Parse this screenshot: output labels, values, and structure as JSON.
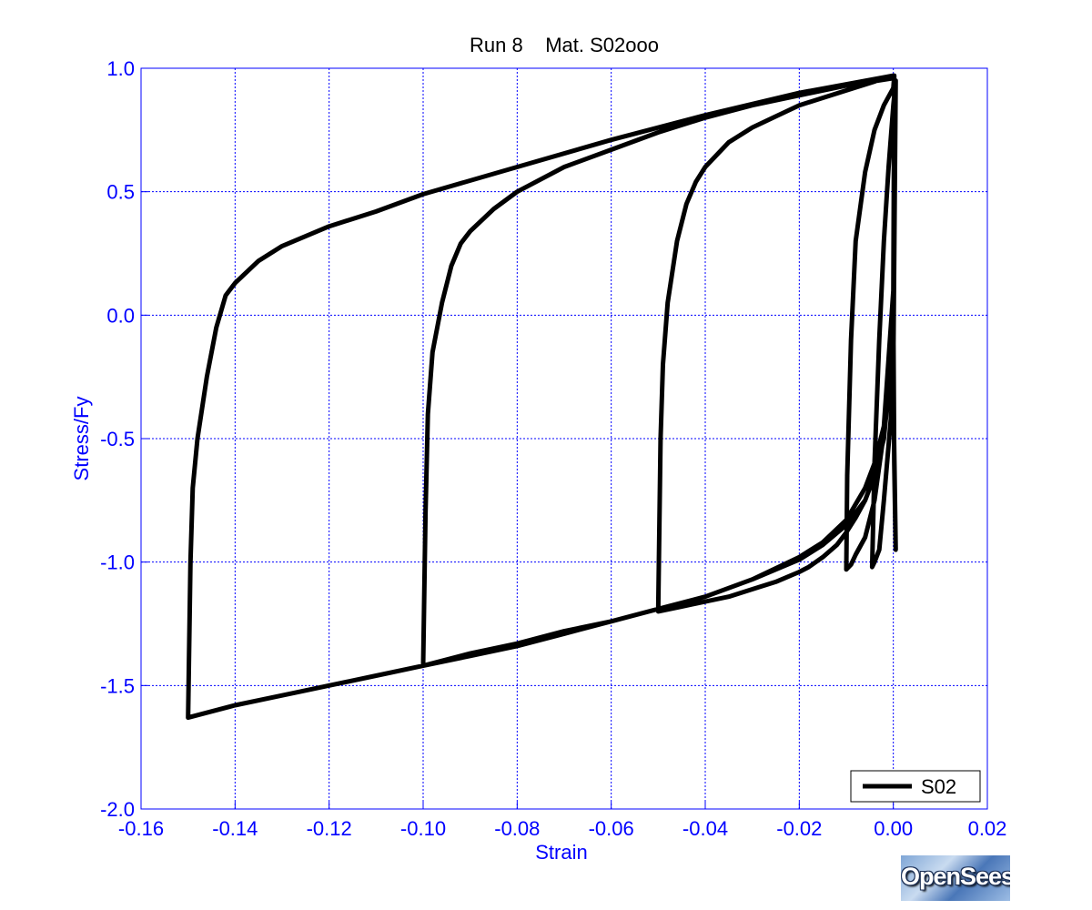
{
  "chart_data": {
    "type": "line",
    "title": "Run 8    Mat. S02ooo",
    "xlabel": "Strain",
    "ylabel": "Stress/Fy",
    "xlim": [
      -0.16,
      0.02
    ],
    "ylim": [
      -2.0,
      1.0
    ],
    "x_ticks": [
      "-0.16",
      "-0.14",
      "-0.12",
      "-0.10",
      "-0.08",
      "-0.06",
      "-0.04",
      "-0.02",
      "0.00",
      "0.02"
    ],
    "y_ticks": [
      "1.0",
      "0.5",
      "0.0",
      "-0.5",
      "-1.0",
      "-1.5",
      "-2.0"
    ],
    "grid": true,
    "legend_position": "bottom-right",
    "series": [
      {
        "name": "S02",
        "color": "#000000",
        "x": [
          0.0,
          0.0002,
          0.0005,
          0.0,
          -0.002,
          -0.003,
          -0.004,
          -0.0045,
          -0.004,
          -0.003,
          -0.002,
          -0.001,
          0.0,
          0.0005,
          0.0,
          -0.004,
          -0.006,
          -0.008,
          -0.009,
          -0.01,
          -0.0098,
          -0.009,
          -0.008,
          -0.006,
          -0.004,
          -0.002,
          0.0,
          0.0002,
          0.0,
          -0.002,
          -0.004,
          -0.006,
          -0.008,
          -0.01,
          -0.012,
          -0.015,
          -0.018,
          -0.02,
          -0.025,
          -0.03,
          -0.035,
          -0.04,
          -0.045,
          -0.05,
          -0.0495,
          -0.049,
          -0.048,
          -0.046,
          -0.044,
          -0.042,
          -0.04,
          -0.035,
          -0.03,
          -0.02,
          -0.01,
          0.0,
          0.0002,
          0.0,
          -0.002,
          -0.004,
          -0.006,
          -0.01,
          -0.015,
          -0.02,
          -0.03,
          -0.04,
          -0.05,
          -0.06,
          -0.07,
          -0.08,
          -0.09,
          -0.1,
          -0.0995,
          -0.099,
          -0.098,
          -0.096,
          -0.094,
          -0.092,
          -0.09,
          -0.085,
          -0.08,
          -0.07,
          -0.06,
          -0.05,
          -0.04,
          -0.03,
          -0.02,
          -0.01,
          0.0,
          0.0002,
          0.0,
          -0.002,
          -0.004,
          -0.006,
          -0.01,
          -0.015,
          -0.02,
          -0.03,
          -0.04,
          -0.05,
          -0.06,
          -0.07,
          -0.08,
          -0.09,
          -0.1,
          -0.11,
          -0.12,
          -0.13,
          -0.14,
          -0.15,
          -0.1495,
          -0.149,
          -0.148,
          -0.146,
          -0.144,
          -0.142,
          -0.14,
          -0.135,
          -0.13,
          -0.12,
          -0.11,
          -0.1,
          -0.08,
          -0.06,
          -0.04,
          -0.02,
          0.0
        ],
        "y": [
          0.0,
          -0.6,
          -0.95,
          -0.3,
          -0.75,
          -0.95,
          -1.0,
          -1.02,
          -0.6,
          -0.1,
          0.3,
          0.6,
          0.85,
          0.95,
          -0.2,
          -0.75,
          -0.9,
          -0.97,
          -1.01,
          -1.03,
          -0.65,
          -0.1,
          0.3,
          0.58,
          0.75,
          0.85,
          0.92,
          0.97,
          -0.1,
          -0.5,
          -0.65,
          -0.75,
          -0.82,
          -0.88,
          -0.93,
          -0.98,
          -1.02,
          -1.04,
          -1.08,
          -1.11,
          -1.14,
          -1.16,
          -1.18,
          -1.2,
          -0.5,
          -0.2,
          0.05,
          0.3,
          0.45,
          0.54,
          0.6,
          0.7,
          0.76,
          0.85,
          0.91,
          0.97,
          0.97,
          0.0,
          -0.5,
          -0.65,
          -0.75,
          -0.85,
          -0.93,
          -0.99,
          -1.07,
          -1.14,
          -1.19,
          -1.24,
          -1.29,
          -1.34,
          -1.38,
          -1.42,
          -0.8,
          -0.4,
          -0.15,
          0.05,
          0.2,
          0.29,
          0.34,
          0.43,
          0.5,
          0.6,
          0.67,
          0.74,
          0.8,
          0.85,
          0.89,
          0.93,
          0.96,
          0.97,
          0.1,
          -0.45,
          -0.6,
          -0.7,
          -0.83,
          -0.92,
          -0.98,
          -1.07,
          -1.14,
          -1.19,
          -1.24,
          -1.28,
          -1.33,
          -1.37,
          -1.42,
          -1.46,
          -1.5,
          -1.54,
          -1.58,
          -1.63,
          -1.0,
          -0.7,
          -0.5,
          -0.25,
          -0.05,
          0.08,
          0.13,
          0.22,
          0.28,
          0.36,
          0.42,
          0.49,
          0.6,
          0.71,
          0.81,
          0.9,
          0.97
        ]
      }
    ]
  }
}
